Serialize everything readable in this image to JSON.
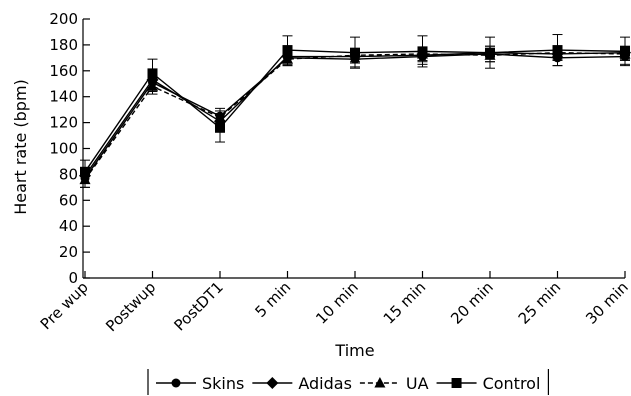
{
  "chart_data": {
    "type": "line",
    "title": "",
    "xlabel": "Time",
    "ylabel": "Heart rate (bpm)",
    "ylim": [
      0,
      200
    ],
    "yticks": [
      0,
      20,
      40,
      60,
      80,
      100,
      120,
      140,
      160,
      180,
      200
    ],
    "categories": [
      "Pre wup",
      "Postwup",
      "PostDT1",
      "5 min",
      "10 min",
      "15 min",
      "20 min",
      "25 min",
      "30 min"
    ],
    "grid": false,
    "legend_position": "bottom",
    "series": [
      {
        "name": "Skins",
        "marker": "circle",
        "line_style": "solid",
        "values": [
          77,
          151,
          125,
          170,
          169,
          171,
          173,
          170,
          171
        ],
        "error": [
          7,
          7,
          6,
          6,
          6,
          6,
          6,
          6,
          6
        ]
      },
      {
        "name": "Adidas",
        "marker": "diamond",
        "line_style": "solid",
        "values": [
          79,
          153,
          121,
          171,
          171,
          172,
          174,
          173,
          174
        ],
        "error": [
          6,
          6,
          5,
          5,
          5,
          5,
          5,
          5,
          5
        ]
      },
      {
        "name": "UA",
        "marker": "triangle",
        "line_style": "dashed",
        "values": [
          76,
          148,
          124,
          169,
          172,
          173,
          172,
          174,
          173
        ],
        "error": [
          6,
          6,
          5,
          5,
          5,
          5,
          5,
          5,
          5
        ]
      },
      {
        "name": "Control",
        "marker": "square",
        "line_style": "solid",
        "values": [
          82,
          158,
          116,
          176,
          174,
          175,
          174,
          176,
          175
        ],
        "error": [
          9,
          11,
          11,
          11,
          12,
          12,
          12,
          12,
          11
        ]
      }
    ]
  }
}
